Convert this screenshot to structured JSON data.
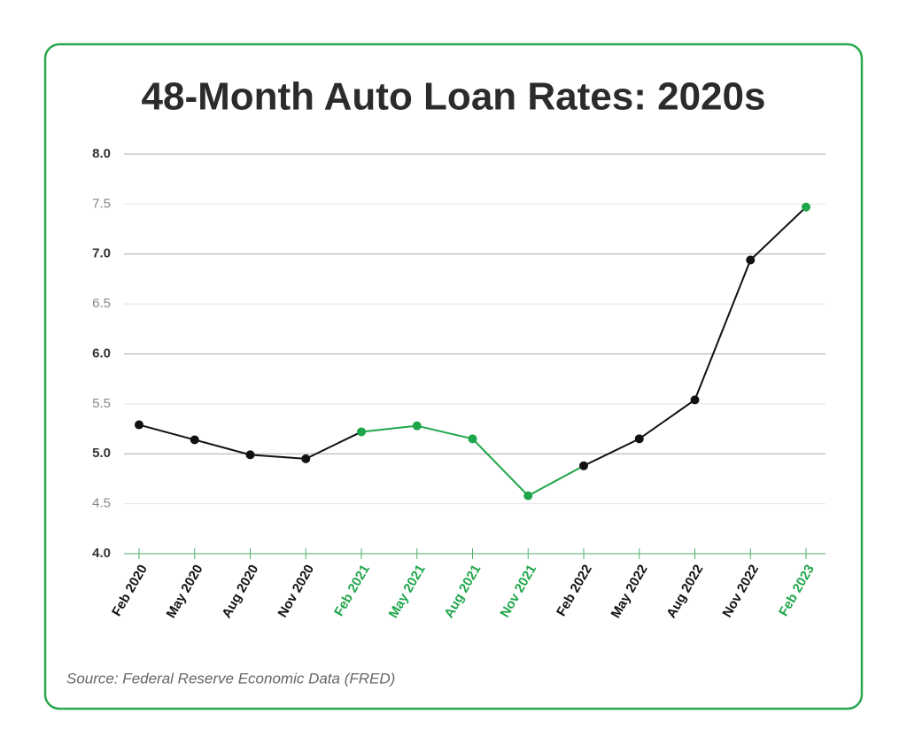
{
  "chart_data": {
    "type": "line",
    "title": "48-Month Auto Loan Rates: 2020s",
    "source": "Source: Federal Reserve Economic Data (FRED)",
    "categories": [
      "Feb 2020",
      "May 2020",
      "Aug 2020",
      "Nov 2020",
      "Feb 2021",
      "May 2021",
      "Aug 2021",
      "Nov 2021",
      "Feb 2022",
      "May 2022",
      "Aug 2022",
      "Nov 2022",
      "Feb 2023"
    ],
    "values": [
      5.29,
      5.14,
      4.99,
      4.95,
      5.22,
      5.28,
      5.15,
      4.58,
      4.88,
      5.15,
      5.54,
      6.94,
      7.47
    ],
    "point_colors": [
      "#111111",
      "#111111",
      "#111111",
      "#111111",
      "#1fa64a",
      "#1fa64a",
      "#1fa64a",
      "#1fa64a",
      "#111111",
      "#111111",
      "#111111",
      "#111111",
      "#1fa64a"
    ],
    "ylim": [
      4,
      8
    ],
    "yticks": [
      {
        "value": 4,
        "label": "4.0"
      },
      {
        "value": 4.5,
        "label": "4.5"
      },
      {
        "value": 5,
        "label": "5.0"
      },
      {
        "value": 5.5,
        "label": "5.5"
      },
      {
        "value": 6,
        "label": "6.0"
      },
      {
        "value": 6.5,
        "label": "6.5"
      },
      {
        "value": 7,
        "label": "7.0"
      },
      {
        "value": 7.5,
        "label": "7.5"
      },
      {
        "value": 8,
        "label": "8.0"
      }
    ],
    "grid": true
  }
}
